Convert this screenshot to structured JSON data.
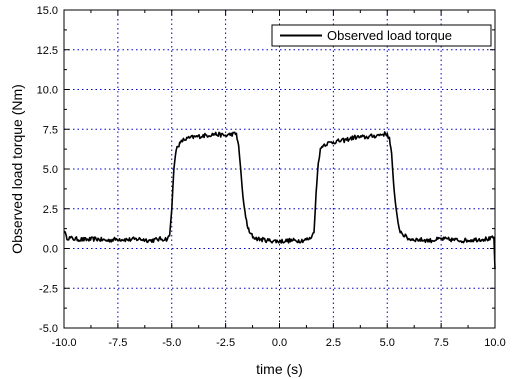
{
  "chart_data": {
    "type": "line",
    "title": "",
    "xlabel": "time (s)",
    "ylabel": "Observed load torque (Nm)",
    "xlim": [
      -10.0,
      10.0
    ],
    "ylim": [
      -5.0,
      15.0
    ],
    "x_ticks": [
      "-10.0",
      "-7.5",
      "-5.0",
      "-2.5",
      "0.0",
      "2.5",
      "5.0",
      "7.5",
      "10.0"
    ],
    "y_ticks": [
      "-5.0",
      "-2.5",
      "0.0",
      "2.5",
      "5.0",
      "7.5",
      "10.0",
      "12.5",
      "15.0"
    ],
    "grid": true,
    "grid_style": "dotted",
    "grid_color": "#0000cc",
    "legend_position": "top-right",
    "series": [
      {
        "name": "Observed load torque",
        "color": "#000000",
        "x": [
          -10.0,
          -9.9,
          -9.5,
          -9.0,
          -8.5,
          -8.0,
          -7.5,
          -7.0,
          -6.5,
          -6.0,
          -5.5,
          -5.2,
          -5.1,
          -5.0,
          -4.9,
          -4.8,
          -4.7,
          -4.6,
          -4.5,
          -4.3,
          -4.0,
          -3.5,
          -3.0,
          -2.5,
          -2.2,
          -2.0,
          -1.9,
          -1.8,
          -1.7,
          -1.6,
          -1.5,
          -1.4,
          -1.2,
          -1.0,
          -0.5,
          0.0,
          0.5,
          1.0,
          1.4,
          1.6,
          1.7,
          1.8,
          1.9,
          2.0,
          2.2,
          2.5,
          3.0,
          3.5,
          4.0,
          4.5,
          4.8,
          5.0,
          5.1,
          5.2,
          5.3,
          5.4,
          5.5,
          5.6,
          5.8,
          6.0,
          6.5,
          7.0,
          7.5,
          8.0,
          8.5,
          9.0,
          9.5,
          9.8,
          9.95,
          10.0
        ],
        "y": [
          1.2,
          0.7,
          0.6,
          0.55,
          0.6,
          0.5,
          0.6,
          0.55,
          0.6,
          0.5,
          0.6,
          0.6,
          0.8,
          2.5,
          5.0,
          6.2,
          6.5,
          6.6,
          6.8,
          6.9,
          7.0,
          7.1,
          7.2,
          7.1,
          7.2,
          7.2,
          6.5,
          5.0,
          3.3,
          2.2,
          1.5,
          1.0,
          0.7,
          0.6,
          0.5,
          0.45,
          0.5,
          0.5,
          0.6,
          1.0,
          3.5,
          5.5,
          6.2,
          6.5,
          6.6,
          6.7,
          6.8,
          7.0,
          7.0,
          7.1,
          7.2,
          7.2,
          6.9,
          6.0,
          4.0,
          2.5,
          1.6,
          1.1,
          0.8,
          0.6,
          0.55,
          0.5,
          0.6,
          0.55,
          0.5,
          0.55,
          0.6,
          0.6,
          0.7,
          -1.3
        ]
      }
    ]
  }
}
